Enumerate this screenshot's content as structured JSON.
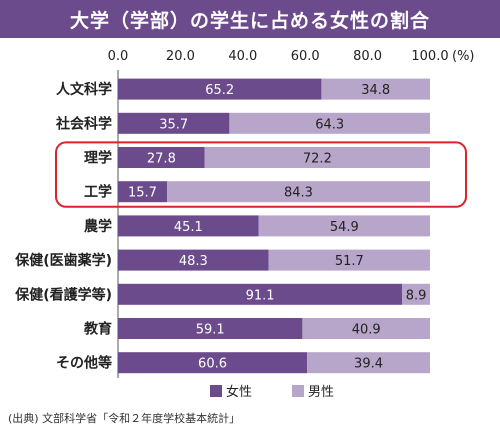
{
  "title": "大学（学部）の学生に占める女性の割合",
  "source": "(出典) 文部科学省「令和２年度学校基本統計」",
  "chart_data": {
    "type": "bar",
    "orientation": "horizontal",
    "stacked": true,
    "title": "大学（学部）の学生に占める女性の割合",
    "xlim": [
      0,
      100
    ],
    "x_ticks": [
      "0.0",
      "20.0",
      "40.0",
      "60.0",
      "80.0",
      "100.0"
    ],
    "x_unit": "(%)",
    "categories": [
      "人文科学",
      "社会科学",
      "理学",
      "工学",
      "農学",
      "保健(医歯薬学)",
      "保健(看護学等)",
      "教育",
      "その他等"
    ],
    "series": [
      {
        "name": "女性",
        "color": "#6b4b8c",
        "values": [
          65.2,
          35.7,
          27.8,
          15.7,
          45.1,
          48.3,
          91.1,
          59.1,
          60.6
        ],
        "labels": [
          "65.2",
          "35.7",
          "27.8",
          "15.7",
          "45.1",
          "48.3",
          "91.1",
          "59.1",
          "60.6"
        ]
      },
      {
        "name": "男性",
        "color": "#b7a6c9",
        "values": [
          34.8,
          64.3,
          72.2,
          84.3,
          54.9,
          51.7,
          8.9,
          40.9,
          39.4
        ],
        "labels": [
          "34.8",
          "64.3",
          "72.2",
          "84.3",
          "54.9",
          "51.7",
          "8.9",
          "40.9",
          "39.4"
        ]
      }
    ],
    "highlight": [
      "理学",
      "工学"
    ],
    "highlight_color": "#d9232d",
    "legend_position": "bottom"
  }
}
